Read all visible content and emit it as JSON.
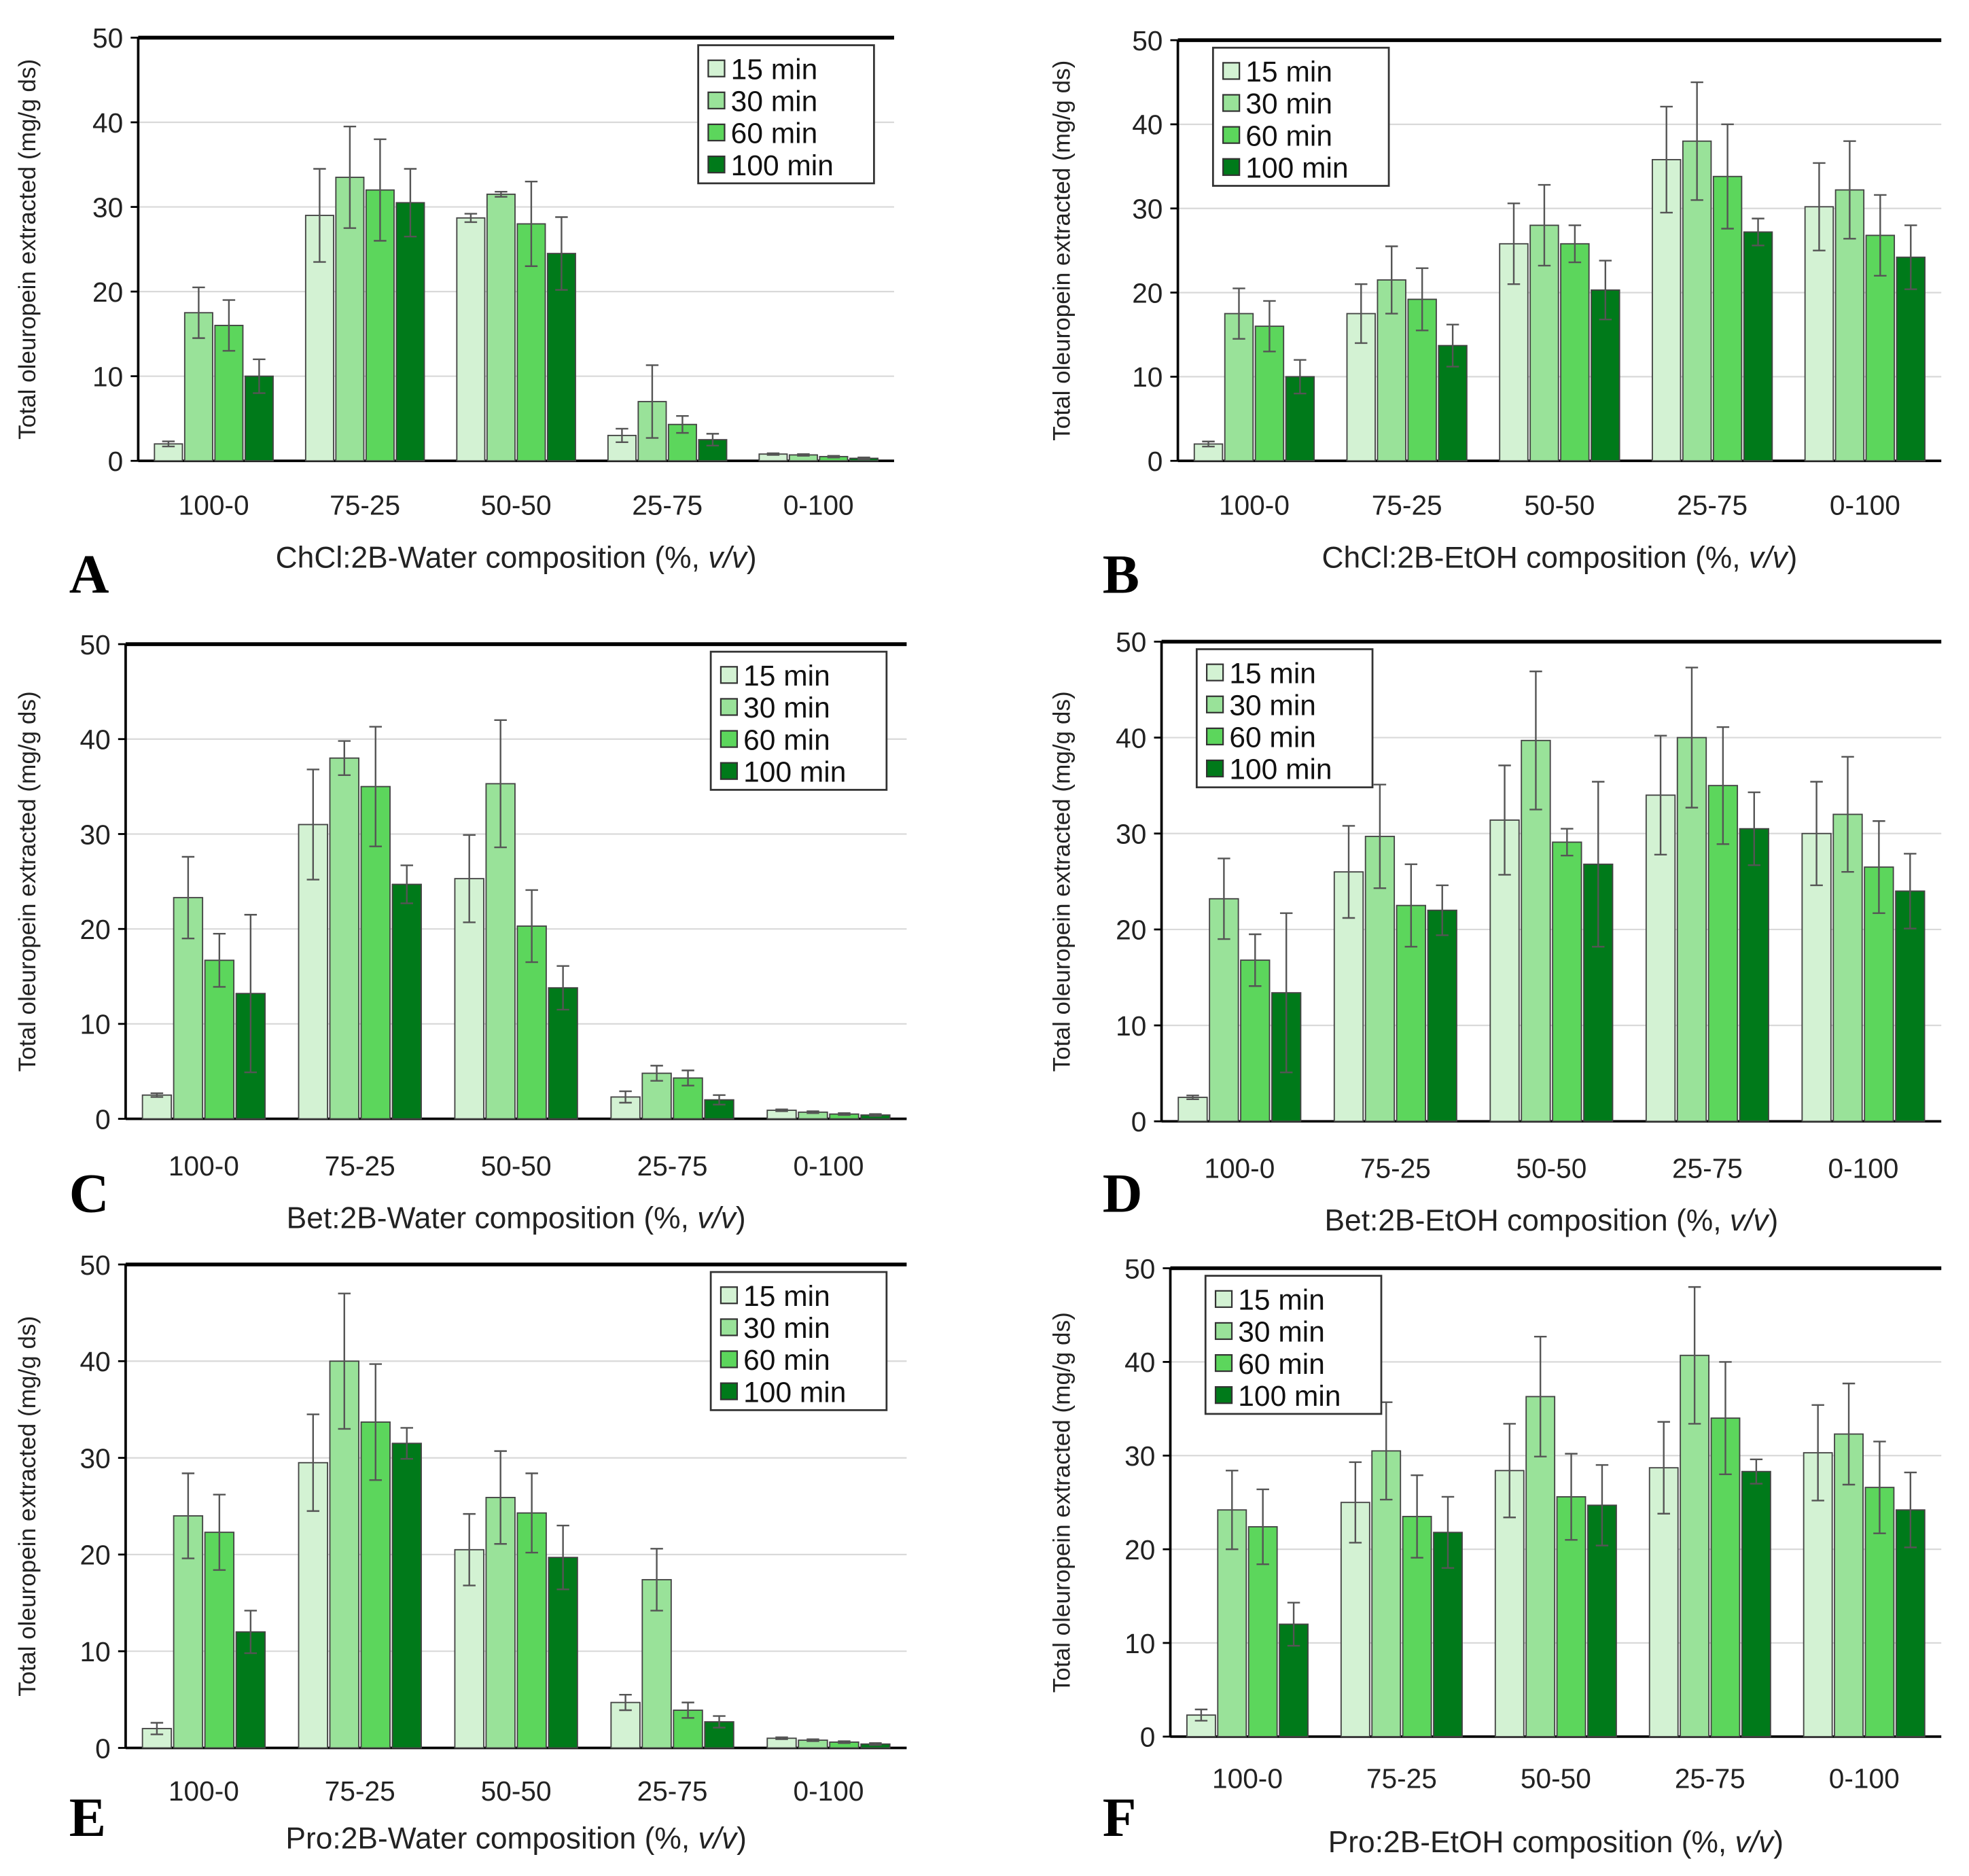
{
  "chart_data": [
    {
      "panel": "A",
      "type": "bar",
      "categories": [
        "100-0",
        "75-25",
        "50-50",
        "25-75",
        "0-100"
      ],
      "xlabel_main": "ChCl:2B-Water composition (%, ",
      "xlabel_italic": "v/v",
      "xlabel_end": ")",
      "ylabel": "Total oleuropein extracted (mg/g ds)",
      "ylim": [
        0,
        50
      ],
      "yticks": [
        "0",
        "10",
        "20",
        "30",
        "40",
        "50"
      ],
      "grid": true,
      "legend_position": "top-right",
      "series": [
        {
          "name": "15 min",
          "values": [
            2,
            29,
            28.7,
            3,
            0.8
          ],
          "errors": [
            0.3,
            5.5,
            0.5,
            0.8,
            0.1
          ]
        },
        {
          "name": "30 min",
          "values": [
            17.5,
            33.5,
            31.5,
            7,
            0.7
          ],
          "errors": [
            3,
            6,
            0.3,
            4.3,
            0.1
          ]
        },
        {
          "name": "60 min",
          "values": [
            16,
            32,
            28,
            4.3,
            0.5
          ],
          "errors": [
            3,
            6,
            5,
            1,
            0.1
          ]
        },
        {
          "name": "100 min",
          "values": [
            10,
            30.5,
            24.5,
            2.5,
            0.3
          ],
          "errors": [
            2,
            4,
            4.3,
            0.7,
            0.1
          ]
        }
      ]
    },
    {
      "panel": "B",
      "type": "bar",
      "categories": [
        "100-0",
        "75-25",
        "50-50",
        "25-75",
        "0-100"
      ],
      "xlabel_main": "ChCl:2B-EtOH composition (%, ",
      "xlabel_italic": "v/v",
      "xlabel_end": ")",
      "ylabel": "Total oleuropein extracted (mg/g ds)",
      "ylim": [
        0,
        50
      ],
      "yticks": [
        "0",
        "10",
        "20",
        "30",
        "40",
        "50"
      ],
      "grid": true,
      "legend_position": "top-left",
      "series": [
        {
          "name": "15 min",
          "values": [
            2,
            17.5,
            25.8,
            35.8,
            30.2
          ],
          "errors": [
            0.3,
            3.5,
            4.8,
            6.3,
            5.2
          ]
        },
        {
          "name": "30 min",
          "values": [
            17.5,
            21.5,
            28,
            38,
            32.2
          ],
          "errors": [
            3,
            4,
            4.8,
            7,
            5.8
          ]
        },
        {
          "name": "60 min",
          "values": [
            16,
            19.2,
            25.8,
            33.8,
            26.8
          ],
          "errors": [
            3,
            3.7,
            2.2,
            6.2,
            4.8
          ]
        },
        {
          "name": "100 min",
          "values": [
            10,
            13.7,
            20.3,
            27.2,
            24.2
          ],
          "errors": [
            2,
            2.5,
            3.5,
            1.6,
            3.8
          ]
        }
      ]
    },
    {
      "panel": "C",
      "type": "bar",
      "categories": [
        "100-0",
        "75-25",
        "50-50",
        "25-75",
        "0-100"
      ],
      "xlabel_main": "Bet:2B-Water composition (%, ",
      "xlabel_italic": "v/v",
      "xlabel_end": ")",
      "ylabel": "Total oleuropein extracted (mg/g ds)",
      "ylim": [
        0,
        50
      ],
      "yticks": [
        "0",
        "10",
        "20",
        "30",
        "40",
        "50"
      ],
      "grid": true,
      "legend_position": "top-right",
      "series": [
        {
          "name": "15 min",
          "values": [
            2.5,
            31,
            25.3,
            2.3,
            0.9
          ],
          "errors": [
            0.2,
            5.8,
            4.6,
            0.6,
            0.1
          ]
        },
        {
          "name": "30 min",
          "values": [
            23.3,
            38,
            35.3,
            4.8,
            0.7
          ],
          "errors": [
            4.3,
            1.8,
            6.7,
            0.8,
            0.1
          ]
        },
        {
          "name": "60 min",
          "values": [
            16.7,
            35,
            20.3,
            4.3,
            0.5
          ],
          "errors": [
            2.8,
            6.3,
            3.8,
            0.8,
            0.1
          ]
        },
        {
          "name": "100 min",
          "values": [
            13.2,
            24.7,
            13.8,
            2,
            0.4
          ],
          "errors": [
            8.3,
            2,
            2.3,
            0.5,
            0.1
          ]
        }
      ]
    },
    {
      "panel": "D",
      "type": "bar",
      "categories": [
        "100-0",
        "75-25",
        "50-50",
        "25-75",
        "0-100"
      ],
      "xlabel_main": "Bet:2B-EtOH composition (%, ",
      "xlabel_italic": "v/v",
      "xlabel_end": ")",
      "ylabel": "Total oleuropein extracted (mg/g ds)",
      "ylim": [
        0,
        50
      ],
      "yticks": [
        "0",
        "10",
        "20",
        "30",
        "40",
        "50"
      ],
      "grid": true,
      "legend_position": "top-left",
      "series": [
        {
          "name": "15 min",
          "values": [
            2.5,
            26,
            31.4,
            34,
            30
          ],
          "errors": [
            0.2,
            4.8,
            5.7,
            6.2,
            5.4
          ]
        },
        {
          "name": "30 min",
          "values": [
            23.2,
            29.7,
            39.7,
            40,
            32
          ],
          "errors": [
            4.2,
            5.4,
            7.2,
            7.3,
            6
          ]
        },
        {
          "name": "60 min",
          "values": [
            16.8,
            22.5,
            29.1,
            35,
            26.5
          ],
          "errors": [
            2.7,
            4.3,
            1.4,
            6.1,
            4.8
          ]
        },
        {
          "name": "100 min",
          "values": [
            13.4,
            22,
            26.8,
            30.5,
            24
          ],
          "errors": [
            8.3,
            2.6,
            8.6,
            3.8,
            3.9
          ]
        }
      ]
    },
    {
      "panel": "E",
      "type": "bar",
      "categories": [
        "100-0",
        "75-25",
        "50-50",
        "25-75",
        "0-100"
      ],
      "xlabel_main": "Pro:2B-Water composition (%, ",
      "xlabel_italic": "v/v",
      "xlabel_end": ")",
      "ylabel": "Total oleuropein extracted (mg/g ds)",
      "ylim": [
        0,
        50
      ],
      "yticks": [
        "0",
        "10",
        "20",
        "30",
        "40",
        "50"
      ],
      "grid": true,
      "legend_position": "top-right",
      "series": [
        {
          "name": "15 min",
          "values": [
            2,
            29.5,
            20.5,
            4.7,
            1
          ],
          "errors": [
            0.6,
            5,
            3.7,
            0.8,
            0.1
          ]
        },
        {
          "name": "30 min",
          "values": [
            24,
            40,
            25.9,
            17.4,
            0.8
          ],
          "errors": [
            4.4,
            7,
            4.8,
            3.2,
            0.1
          ]
        },
        {
          "name": "60 min",
          "values": [
            22.3,
            33.7,
            24.3,
            3.9,
            0.6
          ],
          "errors": [
            3.9,
            6,
            4.1,
            0.8,
            0.1
          ]
        },
        {
          "name": "100 min",
          "values": [
            12,
            31.5,
            19.7,
            2.7,
            0.4
          ],
          "errors": [
            2.2,
            1.6,
            3.3,
            0.6,
            0.1
          ]
        }
      ]
    },
    {
      "panel": "F",
      "type": "bar",
      "categories": [
        "100-0",
        "75-25",
        "50-50",
        "25-75",
        "0-100"
      ],
      "xlabel_main": "Pro:2B-EtOH composition (%, ",
      "xlabel_italic": "v/v",
      "xlabel_end": ")",
      "ylabel": "Total oleuropein extracted (mg/g ds)",
      "ylim": [
        0,
        50
      ],
      "yticks": [
        "0",
        "10",
        "20",
        "30",
        "40",
        "50"
      ],
      "grid": true,
      "legend_position": "top-left",
      "series": [
        {
          "name": "15 min",
          "values": [
            2.3,
            25,
            28.4,
            28.7,
            30.3
          ],
          "errors": [
            0.6,
            4.3,
            5,
            4.9,
            5.1
          ]
        },
        {
          "name": "30 min",
          "values": [
            24.2,
            30.5,
            36.3,
            40.7,
            32.3
          ],
          "errors": [
            4.2,
            5.2,
            6.4,
            7.3,
            5.4
          ]
        },
        {
          "name": "60 min",
          "values": [
            22.4,
            23.5,
            25.6,
            34,
            26.6
          ],
          "errors": [
            4,
            4.4,
            4.6,
            6,
            4.9
          ]
        },
        {
          "name": "100 min",
          "values": [
            12,
            21.8,
            24.7,
            28.3,
            24.2
          ],
          "errors": [
            2.3,
            3.8,
            4.3,
            1.3,
            4
          ]
        }
      ]
    }
  ],
  "colors": [
    "#d3f2d3",
    "#99e299",
    "#5cd65c",
    "#007a1a"
  ]
}
